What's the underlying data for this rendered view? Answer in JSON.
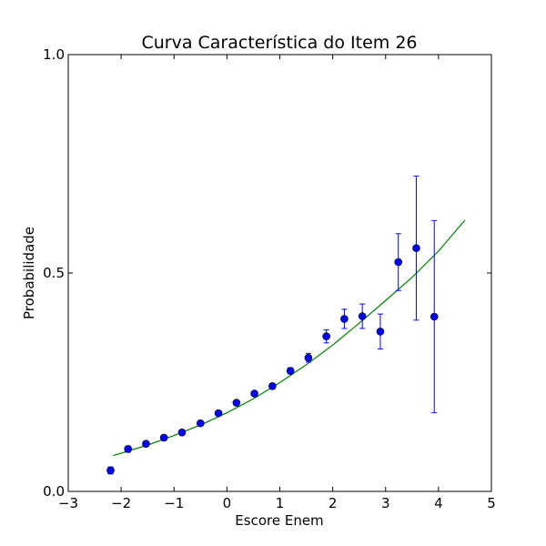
{
  "chart_data": {
    "type": "scatter",
    "title": "Curva Característica do Item 26",
    "xlabel": "Escore Enem",
    "ylabel": "Probabilidade",
    "xlim": [
      -3,
      5
    ],
    "ylim": [
      0.0,
      1.0
    ],
    "grid": false,
    "x_ticks": [
      -3,
      -2,
      -1,
      0,
      1,
      2,
      3,
      4,
      5
    ],
    "x_tick_labels": [
      "−3",
      "−2",
      "−1",
      "0",
      "1",
      "2",
      "3",
      "4",
      "5"
    ],
    "y_ticks": [
      0.0,
      0.5,
      1.0
    ],
    "y_tick_labels": [
      "0.0",
      "0.5",
      "1.0"
    ],
    "marker_color": "#0000ff",
    "line_color": "#008000",
    "points": [
      {
        "x": -2.2,
        "y": 0.048,
        "err": 0.008
      },
      {
        "x": -1.87,
        "y": 0.097,
        "err": 0.007
      },
      {
        "x": -1.53,
        "y": 0.109,
        "err": 0.006
      },
      {
        "x": -1.19,
        "y": 0.123,
        "err": 0.005
      },
      {
        "x": -0.85,
        "y": 0.135,
        "err": 0.005
      },
      {
        "x": -0.5,
        "y": 0.156,
        "err": 0.005
      },
      {
        "x": -0.16,
        "y": 0.179,
        "err": 0.005
      },
      {
        "x": 0.18,
        "y": 0.203,
        "err": 0.005
      },
      {
        "x": 0.52,
        "y": 0.224,
        "err": 0.005
      },
      {
        "x": 0.86,
        "y": 0.241,
        "err": 0.006
      },
      {
        "x": 1.2,
        "y": 0.276,
        "err": 0.007
      },
      {
        "x": 1.54,
        "y": 0.306,
        "err": 0.01
      },
      {
        "x": 1.88,
        "y": 0.355,
        "err": 0.015
      },
      {
        "x": 2.22,
        "y": 0.395,
        "err": 0.022
      },
      {
        "x": 2.56,
        "y": 0.401,
        "err": 0.028
      },
      {
        "x": 2.9,
        "y": 0.366,
        "err": 0.04
      },
      {
        "x": 3.24,
        "y": 0.525,
        "err": 0.065
      },
      {
        "x": 3.58,
        "y": 0.557,
        "err": 0.165
      },
      {
        "x": 3.92,
        "y": 0.4,
        "err": 0.22
      }
    ],
    "curve": {
      "x": [
        -2.15,
        -1.5,
        -1.0,
        -0.5,
        0.0,
        0.5,
        1.0,
        1.5,
        2.0,
        2.5,
        3.0,
        3.5,
        4.0,
        4.5
      ],
      "y": [
        0.082,
        0.106,
        0.128,
        0.152,
        0.18,
        0.212,
        0.249,
        0.29,
        0.335,
        0.385,
        0.437,
        0.49,
        0.55,
        0.621
      ]
    }
  }
}
